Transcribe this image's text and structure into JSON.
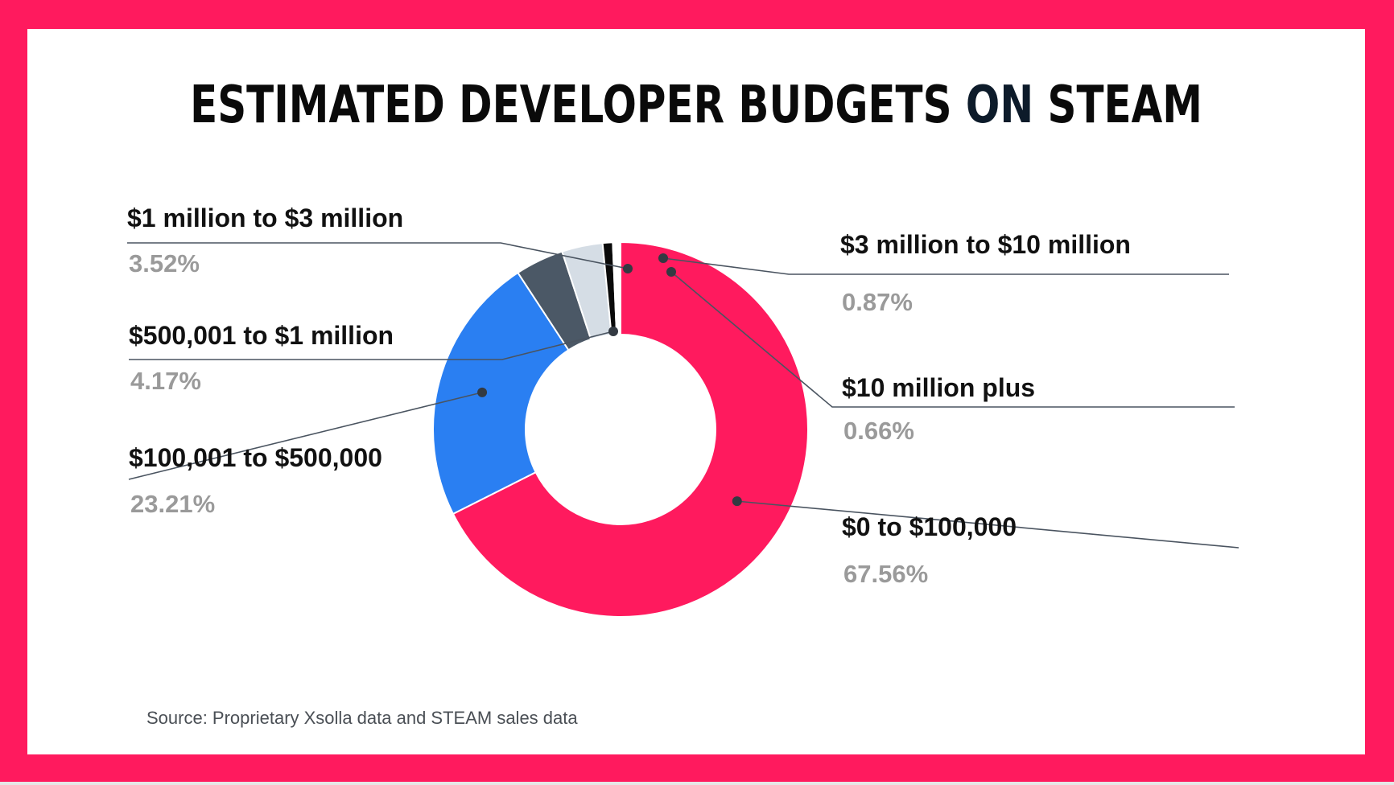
{
  "title": {
    "main": "ESTIMATED DEVELOPER BUDGETS",
    "accent": "ON",
    "tail": "STEAM"
  },
  "source": "Source: Proprietary Xsolla data and STEAM sales data",
  "colors": {
    "frame": "#ff1a5e",
    "slice_0_100k": "#ff1a5e",
    "slice_100k_500k": "#2a7ff2",
    "slice_500k_1m": "#4b5866",
    "slice_1m_3m": "#d5dde5",
    "slice_3m_10m": "#0a0a0a",
    "slice_10m_plus": "#ffffff",
    "leader": "#4a5460",
    "label": "#111111",
    "percent": "#9a9a9a"
  },
  "chart_data": {
    "type": "pie",
    "donut": true,
    "title": "ESTIMATED DEVELOPER BUDGETS ON STEAM",
    "slices": [
      {
        "label": "$0 to $100,000",
        "value": 67.56,
        "display": "67.56%"
      },
      {
        "label": "$100,001 to $500,000",
        "value": 23.21,
        "display": "23.21%"
      },
      {
        "label": "$500,001 to $1 million",
        "value": 4.17,
        "display": "4.17%"
      },
      {
        "label": "$1 million to $3 million",
        "value": 3.52,
        "display": "3.52%"
      },
      {
        "label": "$3 million to $10 million",
        "value": 0.87,
        "display": "0.87%"
      },
      {
        "label": "$10 million plus",
        "value": 0.66,
        "display": "0.66%"
      }
    ]
  }
}
